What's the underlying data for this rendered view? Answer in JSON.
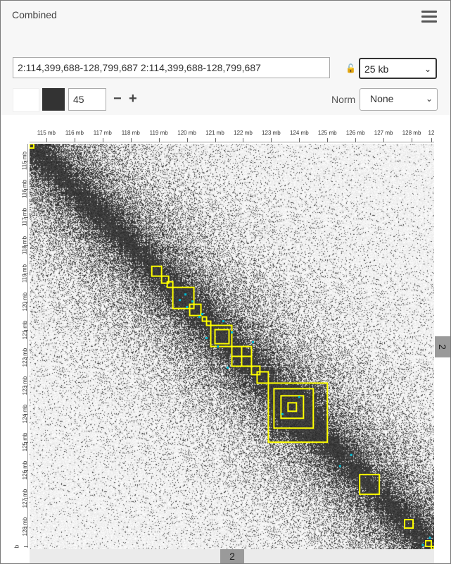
{
  "header": {
    "title": "Combined"
  },
  "controls": {
    "locus": "2:114,399,688-128,799,687 2:114,399,688-128,799,687",
    "resolution": "25 kb",
    "color_max": "45",
    "norm_label": "Norm",
    "norm_value": "None",
    "minus_label": "−",
    "plus_label": "+",
    "lock_icon": "🔓",
    "chevron": "⌄"
  },
  "axes": {
    "x_ticks": [
      "115 mb",
      "116 mb",
      "117 mb",
      "118 mb",
      "119 mb",
      "120 mb",
      "121 mb",
      "122 mb",
      "123 mb",
      "124 mb",
      "125 mb",
      "126 mb",
      "127 mb",
      "128 mb",
      "12"
    ],
    "y_ticks": [
      "115 mb",
      "116 mb",
      "117 mb",
      "118 mb",
      "119 mb",
      "120 mb",
      "121 mb",
      "122 mb",
      "123 mb",
      "124 mb",
      "125 mb",
      "126 mb",
      "127 mb",
      "128 mb",
      "b"
    ],
    "chrom_x": "2",
    "chrom_y": "2"
  },
  "colors": {
    "high": "#333333",
    "low": "#ffffff",
    "domain": "#ffff00",
    "loop": "#00bcd4"
  },
  "chart_data": {
    "type": "heatmap",
    "title": "Combined",
    "range_mb": [
      114.4,
      128.8
    ],
    "x_ticks_mb": [
      115,
      116,
      117,
      118,
      119,
      120,
      121,
      122,
      123,
      124,
      125,
      126,
      127,
      128
    ],
    "domains_mb": [
      [
        114.4,
        114.55
      ],
      [
        118.75,
        119.1
      ],
      [
        119.1,
        119.35
      ],
      [
        119.3,
        119.5
      ],
      [
        119.5,
        120.25
      ],
      [
        120.1,
        120.5
      ],
      [
        120.55,
        120.7
      ],
      [
        120.7,
        120.85
      ],
      [
        120.85,
        121.6
      ],
      [
        121.0,
        121.5
      ],
      [
        121.6,
        122.3
      ],
      [
        121.6,
        121.95
      ],
      [
        121.95,
        122.3
      ],
      [
        122.3,
        122.6
      ],
      [
        122.5,
        122.9
      ],
      [
        122.9,
        125.0
      ],
      [
        123.1,
        124.5
      ],
      [
        123.35,
        124.15
      ],
      [
        123.6,
        123.9
      ],
      [
        126.15,
        126.85
      ],
      [
        127.75,
        128.05
      ],
      [
        128.5,
        128.7
      ],
      [
        128.7,
        128.8
      ]
    ],
    "loops_mb": [
      [
        119.95,
        119.75
      ],
      [
        120.2,
        120.0
      ],
      [
        120.55,
        120.45
      ],
      [
        120.7,
        121.3
      ],
      [
        121.1,
        121.6
      ],
      [
        121.45,
        122.35
      ],
      [
        123.4,
        124.0
      ],
      [
        125.45,
        125.85
      ],
      [
        128.4,
        128.65
      ]
    ]
  }
}
